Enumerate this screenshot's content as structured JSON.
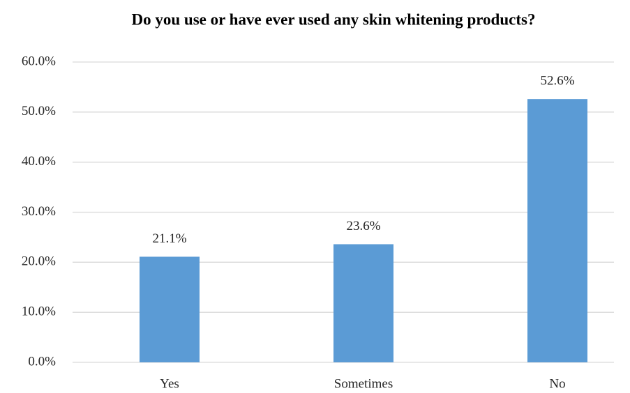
{
  "chart_data": {
    "type": "bar",
    "title": "Do you use or have ever used any skin whitening products?",
    "categories": [
      "Yes",
      "Sometimes",
      "No"
    ],
    "values": [
      21.1,
      23.6,
      52.6
    ],
    "value_labels": [
      "21.1%",
      "23.6%",
      "52.6%"
    ],
    "color": "#5b9bd5",
    "ylim": [
      0,
      60
    ],
    "yticks": [
      {
        "value": 0,
        "label": "0.0%"
      },
      {
        "value": 10,
        "label": "10.0%"
      },
      {
        "value": 20,
        "label": "20.0%"
      },
      {
        "value": 30,
        "label": "30.0%"
      },
      {
        "value": 40,
        "label": "40.0%"
      },
      {
        "value": 50,
        "label": "50.0%"
      },
      {
        "value": 60,
        "label": "60.0%"
      }
    ],
    "grid": true
  }
}
